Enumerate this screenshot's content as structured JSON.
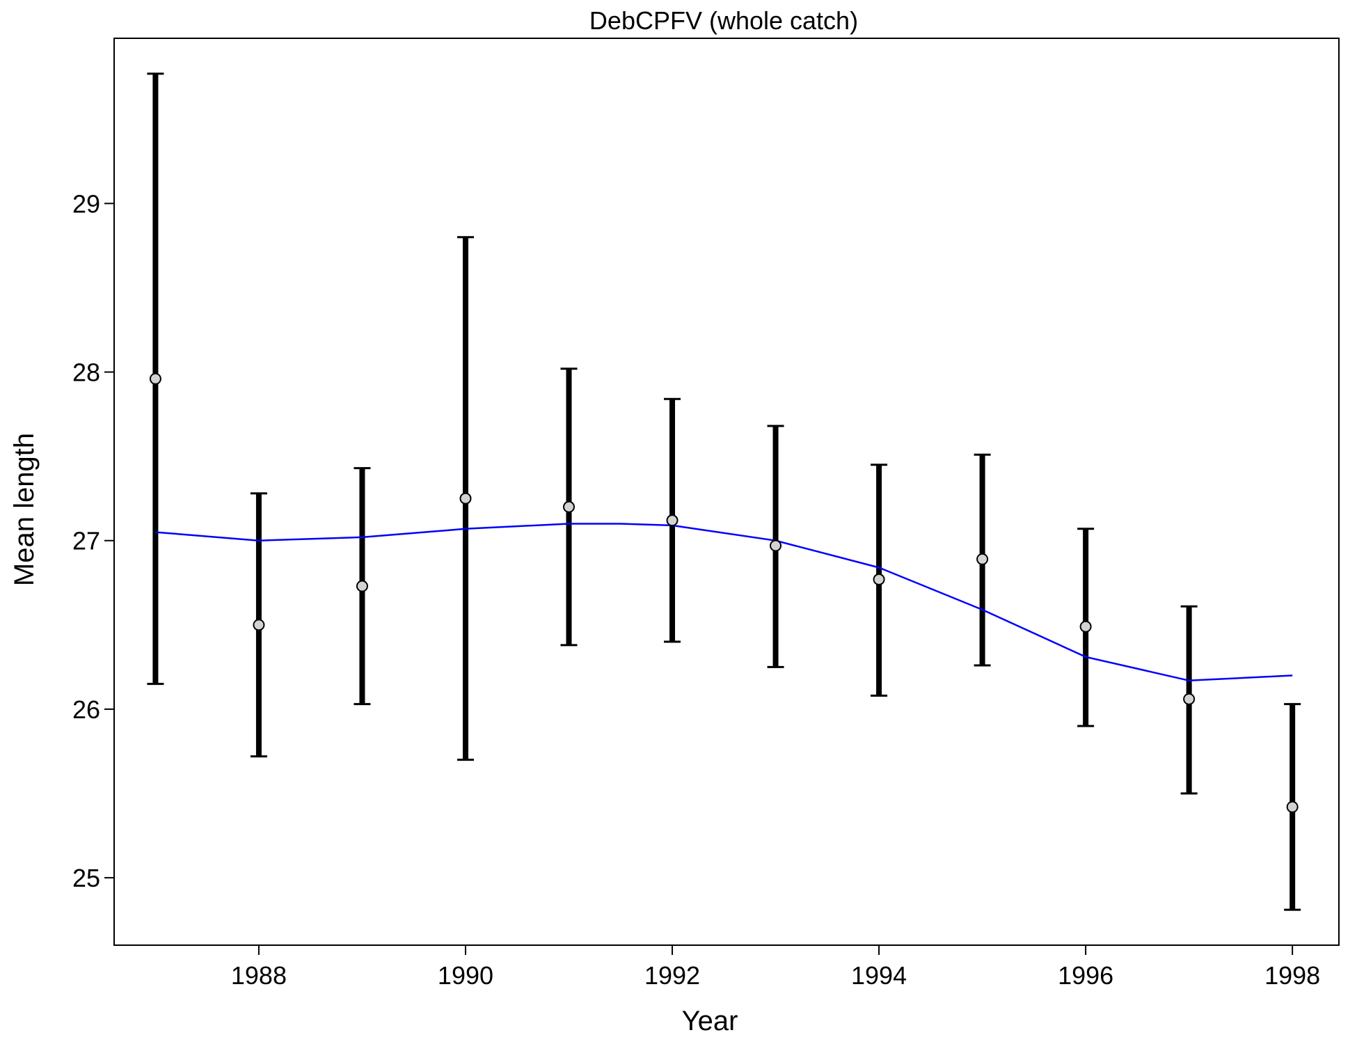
{
  "chart_data": {
    "type": "scatter",
    "title": "DebCPFV (whole catch)",
    "xlabel": "Year",
    "ylabel": "Mean length",
    "xlim": [
      1986.6,
      1998.45
    ],
    "ylim": [
      24.6,
      29.98
    ],
    "x_ticks": [
      1988,
      1990,
      1992,
      1994,
      1996,
      1998
    ],
    "y_ticks": [
      25,
      26,
      27,
      28,
      29
    ],
    "grid": false,
    "legend": "none",
    "colors": {
      "fit": "#0000ff",
      "points": "#d3d3d3",
      "errorbars": "#000000"
    },
    "series": [
      {
        "kind": "points_with_error_bars",
        "x": [
          1987,
          1988,
          1989,
          1990,
          1991,
          1992,
          1993,
          1994,
          1995,
          1996,
          1997,
          1998
        ],
        "y": [
          27.96,
          26.5,
          26.73,
          27.25,
          27.2,
          27.12,
          26.97,
          26.77,
          26.89,
          26.49,
          26.06,
          25.42
        ],
        "lower": [
          26.15,
          25.72,
          26.03,
          25.7,
          26.38,
          26.4,
          26.25,
          26.08,
          26.26,
          25.9,
          25.5,
          24.81
        ],
        "upper": [
          29.77,
          27.28,
          27.43,
          28.8,
          28.02,
          27.84,
          27.68,
          27.45,
          27.51,
          27.07,
          26.61,
          26.03
        ]
      },
      {
        "kind": "line",
        "x": [
          1987,
          1988,
          1989,
          1990,
          1991,
          1991.5,
          1992,
          1993,
          1994,
          1995,
          1996,
          1997,
          1998
        ],
        "y": [
          27.05,
          27.0,
          27.02,
          27.07,
          27.1,
          27.1,
          27.09,
          27.0,
          26.84,
          26.59,
          26.31,
          26.17,
          26.2
        ]
      }
    ]
  }
}
